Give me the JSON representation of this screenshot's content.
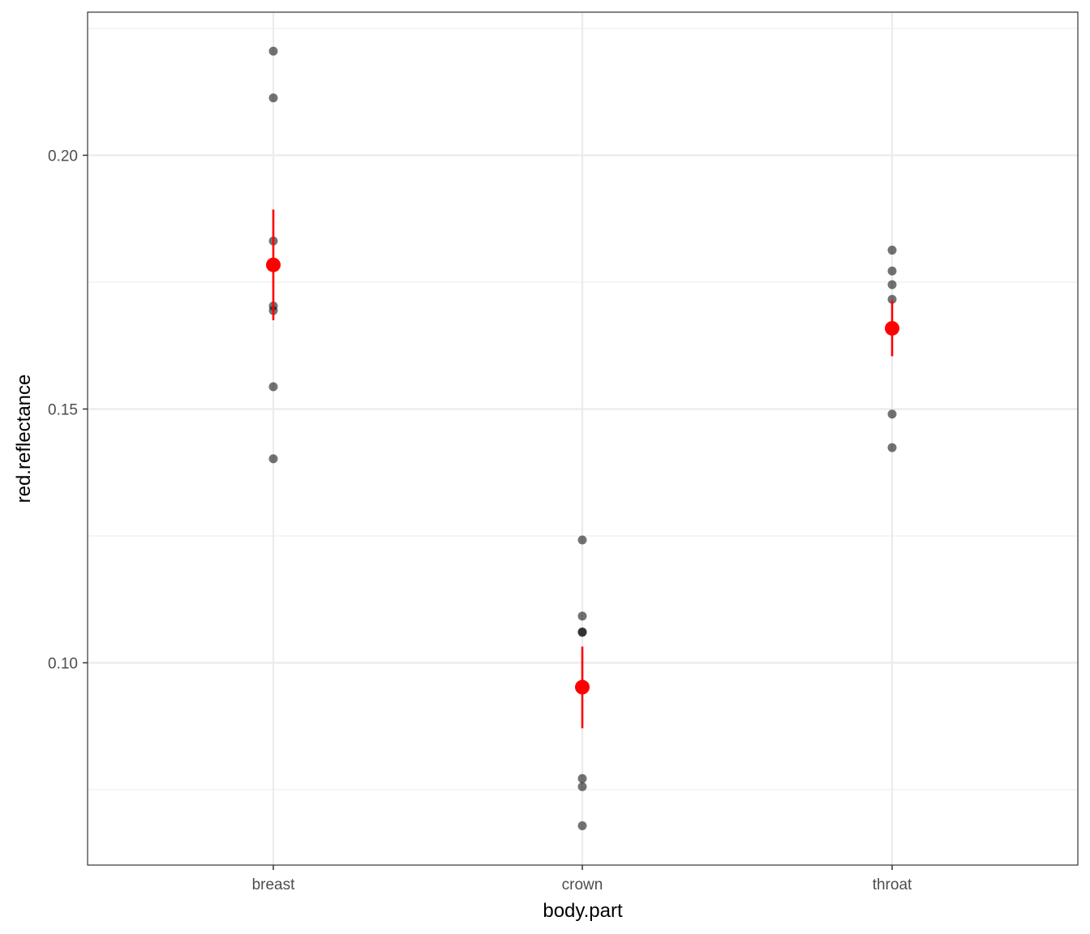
{
  "chart_data": {
    "type": "scatter",
    "xlabel": "body.part",
    "ylabel": "red.reflectance",
    "categories": [
      "breast",
      "crown",
      "throat"
    ],
    "ylim": [
      0.062,
      0.225
    ],
    "yticks": [
      0.1,
      0.15,
      0.2
    ],
    "ytick_labels": [
      "0.10",
      "0.15",
      "0.20"
    ],
    "grid": true,
    "points": [
      {
        "x": "breast",
        "values": [
          0.2205,
          0.2113,
          0.1831,
          0.1703,
          0.1694,
          0.1544,
          0.1402
        ]
      },
      {
        "x": "crown",
        "values": [
          0.1242,
          0.1092,
          0.1061,
          0.106,
          0.0772,
          0.0756,
          0.0679
        ]
      },
      {
        "x": "throat",
        "values": [
          0.1813,
          0.1772,
          0.1745,
          0.1716,
          0.1655,
          0.149,
          0.1424
        ]
      }
    ],
    "summary": [
      {
        "x": "breast",
        "mean": 0.1784,
        "lower": 0.1675,
        "upper": 0.1893
      },
      {
        "x": "crown",
        "mean": 0.0952,
        "lower": 0.0871,
        "upper": 0.1032
      },
      {
        "x": "throat",
        "mean": 0.1659,
        "lower": 0.1604,
        "upper": 0.1714
      }
    ],
    "colors": {
      "points": "#000000",
      "summary": "#ff0000",
      "grid": "#ebebeb",
      "border": "#333333"
    }
  }
}
